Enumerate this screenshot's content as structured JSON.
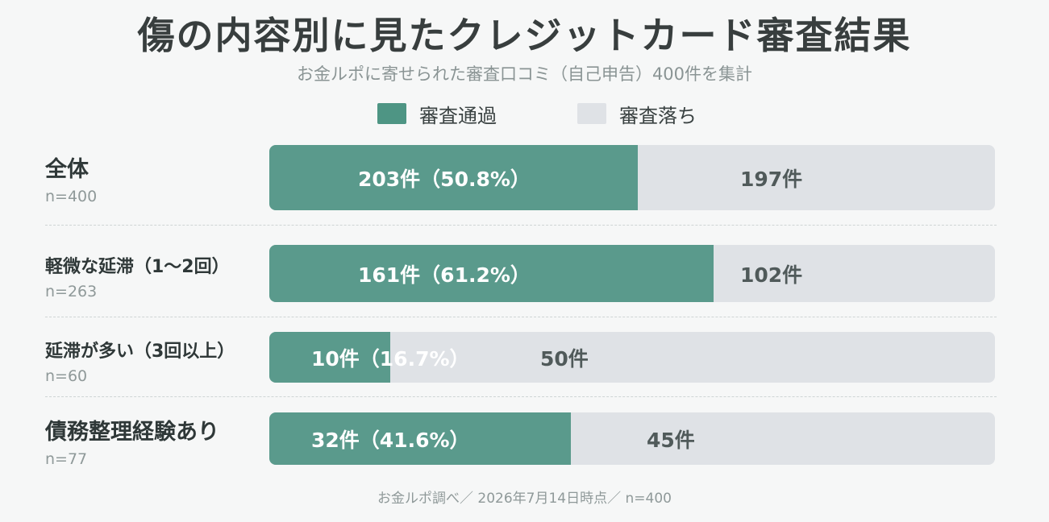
{
  "chart_data": {
    "type": "bar",
    "orientation": "horizontal",
    "stacked": true,
    "title": "傷の内容別に見たクレジットカード審査結果",
    "subtitle": "お金ルポに寄せられた審査口コミ（自己申告）400件を集計",
    "legend": {
      "placement": "top-center"
    },
    "colors": {
      "pass": "#5a9a8c",
      "fail": "#dfe2e6"
    },
    "series": [
      {
        "name": "審査通過",
        "values": [
          203,
          161,
          10,
          32
        ]
      },
      {
        "name": "審査落ち",
        "values": [
          197,
          102,
          50,
          45
        ]
      }
    ],
    "categories": [
      {
        "name": "全体",
        "n": "n=400",
        "pass_label": "203件（50.8%）",
        "fail_label": "197件",
        "pass_pct": 50.8
      },
      {
        "name": "軽微な延滞（1〜2回）",
        "n": "n=263",
        "pass_label": "161件（61.2%）",
        "fail_label": "102件",
        "pass_pct": 61.2
      },
      {
        "name": "延滞が多い（3回以上）",
        "n": "n=60",
        "pass_label": "10件（16.7%）",
        "fail_label": "50件",
        "pass_pct": 16.7
      },
      {
        "name": "債務整理経験あり",
        "n": "n=77",
        "pass_label": "32件（41.6%）",
        "fail_label": "45件",
        "pass_pct": 41.6
      }
    ],
    "footnote": "お金ルポ調べ／ 2026年7月14日時点／ n=400"
  }
}
